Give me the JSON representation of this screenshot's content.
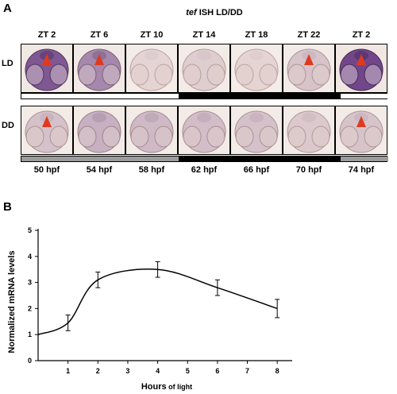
{
  "panel_a": {
    "letter": "A",
    "title_gene": "tef",
    "title_rest": " ISH LD/DD",
    "zt_labels": [
      "ZT 2",
      "ZT 6",
      "ZT 10",
      "ZT 14",
      "ZT 18",
      "ZT 22",
      "ZT 2"
    ],
    "row_labels": [
      "LD",
      "DD"
    ],
    "hpf_labels": [
      "50 hpf",
      "54 hpf",
      "58 hpf",
      "62 hpf",
      "66 hpf",
      "70 hpf",
      "74 hpf"
    ],
    "colors": {
      "dark_stain": "#6b3f86",
      "mid_stain": "#9a7aa8",
      "light_bg": "#ede2dc",
      "arrow": "#e03a1e",
      "bar_dark": "#000000",
      "bar_grey": "#9b9b9b",
      "bar_white": "#ffffff"
    }
  },
  "panel_b": {
    "letter": "B"
  },
  "chart_data": {
    "type": "line",
    "title": "",
    "xlabel_main": "Hours",
    "xlabel_small": " of light",
    "ylabel": "Normalized mRNA levels",
    "x_ticks": [
      1,
      2,
      3,
      4,
      5,
      6,
      7,
      8
    ],
    "y_ticks": [
      0,
      1,
      2,
      3,
      4,
      5
    ],
    "xlim": [
      0,
      8.5
    ],
    "ylim": [
      0,
      5
    ],
    "grid": false,
    "points": [
      {
        "x": 0,
        "y": 1.0,
        "err": 0
      },
      {
        "x": 1,
        "y": 1.45,
        "err": 0.3
      },
      {
        "x": 2,
        "y": 3.1,
        "err": 0.3
      },
      {
        "x": 4,
        "y": 3.5,
        "err": 0.3
      },
      {
        "x": 6,
        "y": 2.8,
        "err": 0.3
      },
      {
        "x": 8,
        "y": 2.0,
        "err": 0.35
      }
    ]
  }
}
